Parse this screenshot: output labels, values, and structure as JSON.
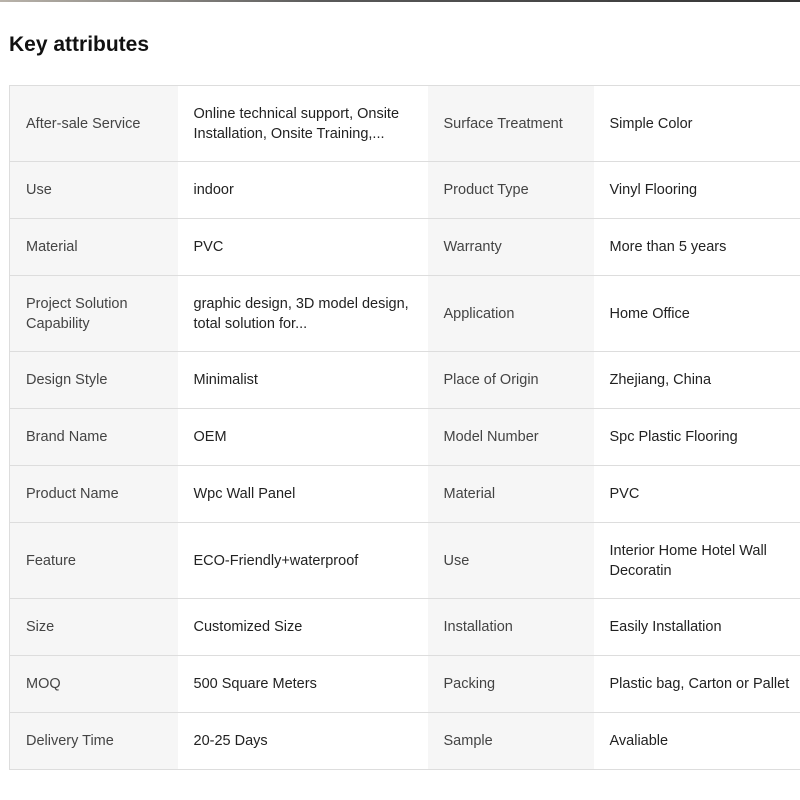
{
  "title": "Key attributes",
  "rows": [
    {
      "k1": "After-sale Service",
      "v1": "Online technical support, Onsite Installation, Onsite Training,...",
      "k2": "Surface Treatment",
      "v2": "Simple Color",
      "h": 76
    },
    {
      "k1": "Use",
      "v1": "indoor",
      "k2": "Product Type",
      "v2": "Vinyl Flooring",
      "h": 57
    },
    {
      "k1": "Material",
      "v1": "PVC",
      "k2": "Warranty",
      "v2": "More than 5 years",
      "h": 57
    },
    {
      "k1": "Project Solution Capability",
      "v1": "graphic design, 3D model design, total solution for...",
      "k2": "Application",
      "v2": "Home Office",
      "h": 76
    },
    {
      "k1": "Design Style",
      "v1": "Minimalist",
      "k2": "Place of Origin",
      "v2": "Zhejiang, China",
      "h": 57
    },
    {
      "k1": "Brand Name",
      "v1": "OEM",
      "k2": "Model Number",
      "v2": "Spc Plastic Flooring",
      "h": 57
    },
    {
      "k1": "Product Name",
      "v1": "Wpc Wall Panel",
      "k2": "Material",
      "v2": "PVC",
      "h": 57
    },
    {
      "k1": "Feature",
      "v1": "ECO-Friendly+waterproof",
      "k2": "Use",
      "v2": "Interior Home Hotel Wall Decoratin",
      "h": 76
    },
    {
      "k1": "Size",
      "v1": "Customized Size",
      "k2": "Installation",
      "v2": "Easily Installation",
      "h": 57
    },
    {
      "k1": "MOQ",
      "v1": "500 Square Meters",
      "k2": "Packing",
      "v2": "Plastic bag, Carton or Pallet",
      "h": 57
    },
    {
      "k1": "Delivery Time",
      "v1": "20-25 Days",
      "k2": "Sample",
      "v2": "Avaliable",
      "h": 57
    }
  ]
}
